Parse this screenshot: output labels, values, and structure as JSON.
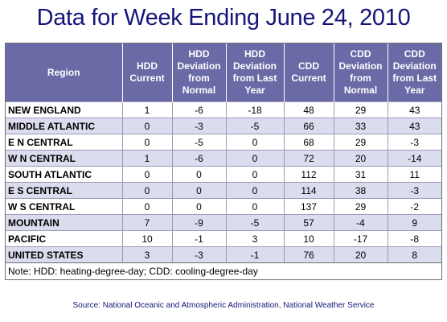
{
  "title": "Data for Week Ending June 24, 2010",
  "headers": [
    "Region",
    "HDD Current",
    "HDD Deviation from Normal",
    "HDD Deviation from Last Year",
    "CDD Current",
    "CDD Deviation from Normal",
    "CDD Deviation from Last Year"
  ],
  "rows": [
    {
      "region": "NEW ENGLAND",
      "hdd_current": "1",
      "hdd_dev_normal": "-6",
      "hdd_dev_last_year": "-18",
      "cdd_current": "48",
      "cdd_dev_normal": "29",
      "cdd_dev_last_year": "43"
    },
    {
      "region": "MIDDLE ATLANTIC",
      "hdd_current": "0",
      "hdd_dev_normal": "-3",
      "hdd_dev_last_year": "-5",
      "cdd_current": "66",
      "cdd_dev_normal": "33",
      "cdd_dev_last_year": "43"
    },
    {
      "region": "E N CENTRAL",
      "hdd_current": "0",
      "hdd_dev_normal": "-5",
      "hdd_dev_last_year": "0",
      "cdd_current": "68",
      "cdd_dev_normal": "29",
      "cdd_dev_last_year": "-3"
    },
    {
      "region": "W N CENTRAL",
      "hdd_current": "1",
      "hdd_dev_normal": "-6",
      "hdd_dev_last_year": "0",
      "cdd_current": "72",
      "cdd_dev_normal": "20",
      "cdd_dev_last_year": "-14"
    },
    {
      "region": "SOUTH ATLANTIC",
      "hdd_current": "0",
      "hdd_dev_normal": "0",
      "hdd_dev_last_year": "0",
      "cdd_current": "112",
      "cdd_dev_normal": "31",
      "cdd_dev_last_year": "11"
    },
    {
      "region": "E S CENTRAL",
      "hdd_current": "0",
      "hdd_dev_normal": "0",
      "hdd_dev_last_year": "0",
      "cdd_current": "114",
      "cdd_dev_normal": "38",
      "cdd_dev_last_year": "-3"
    },
    {
      "region": "W S CENTRAL",
      "hdd_current": "0",
      "hdd_dev_normal": "0",
      "hdd_dev_last_year": "0",
      "cdd_current": "137",
      "cdd_dev_normal": "29",
      "cdd_dev_last_year": "-2"
    },
    {
      "region": "MOUNTAIN",
      "hdd_current": "7",
      "hdd_dev_normal": "-9",
      "hdd_dev_last_year": "-5",
      "cdd_current": "57",
      "cdd_dev_normal": "-4",
      "cdd_dev_last_year": "9"
    },
    {
      "region": "PACIFIC",
      "hdd_current": "10",
      "hdd_dev_normal": "-1",
      "hdd_dev_last_year": "3",
      "cdd_current": "10",
      "cdd_dev_normal": "-17",
      "cdd_dev_last_year": "-8"
    },
    {
      "region": "UNITED STATES",
      "hdd_current": "3",
      "hdd_dev_normal": "-3",
      "hdd_dev_last_year": "-1",
      "cdd_current": "76",
      "cdd_dev_normal": "20",
      "cdd_dev_last_year": "8"
    }
  ],
  "note": "Note: HDD: heating-degree-day; CDD: cooling-degree-day",
  "source": "Source:  National Oceanic and Atmospheric Administration, National Weather Service",
  "colors": {
    "title": "#15157a",
    "header_bg": "#6a6aa6",
    "header_text": "#ffffff",
    "band_even": "#dcdcef",
    "band_odd": "#ffffff"
  }
}
